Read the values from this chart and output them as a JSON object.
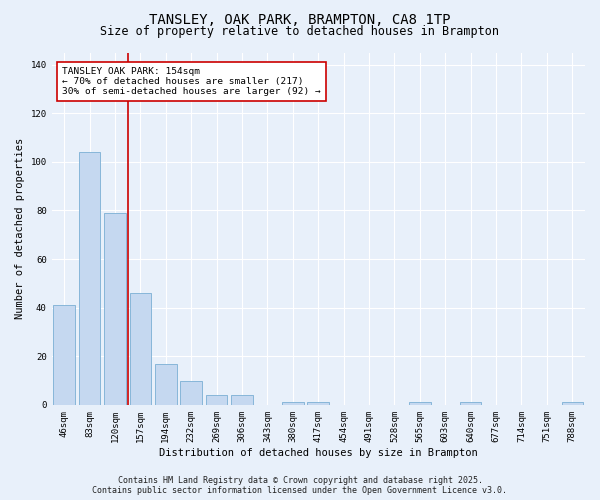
{
  "title": "TANSLEY, OAK PARK, BRAMPTON, CA8 1TP",
  "subtitle": "Size of property relative to detached houses in Brampton",
  "xlabel": "Distribution of detached houses by size in Brampton",
  "ylabel": "Number of detached properties",
  "categories": [
    "46sqm",
    "83sqm",
    "120sqm",
    "157sqm",
    "194sqm",
    "232sqm",
    "269sqm",
    "306sqm",
    "343sqm",
    "380sqm",
    "417sqm",
    "454sqm",
    "491sqm",
    "528sqm",
    "565sqm",
    "603sqm",
    "640sqm",
    "677sqm",
    "714sqm",
    "751sqm",
    "788sqm"
  ],
  "values": [
    41,
    104,
    79,
    46,
    17,
    10,
    4,
    4,
    0,
    1,
    1,
    0,
    0,
    0,
    1,
    0,
    1,
    0,
    0,
    0,
    1
  ],
  "bar_color": "#c5d8f0",
  "bar_edge_color": "#7aafd4",
  "background_color": "#e8f0fa",
  "grid_color": "#ffffff",
  "redline_x": 2.5,
  "annotation_text": "TANSLEY OAK PARK: 154sqm\n← 70% of detached houses are smaller (217)\n30% of semi-detached houses are larger (92) →",
  "annotation_box_color": "#ffffff",
  "annotation_box_edge": "#cc0000",
  "redline_color": "#cc0000",
  "ylim": [
    0,
    145
  ],
  "yticks": [
    0,
    20,
    40,
    60,
    80,
    100,
    120,
    140
  ],
  "footer1": "Contains HM Land Registry data © Crown copyright and database right 2025.",
  "footer2": "Contains public sector information licensed under the Open Government Licence v3.0.",
  "title_fontsize": 10,
  "subtitle_fontsize": 8.5,
  "axis_label_fontsize": 7.5,
  "tick_fontsize": 6.5,
  "annotation_fontsize": 6.8,
  "footer_fontsize": 6.0
}
